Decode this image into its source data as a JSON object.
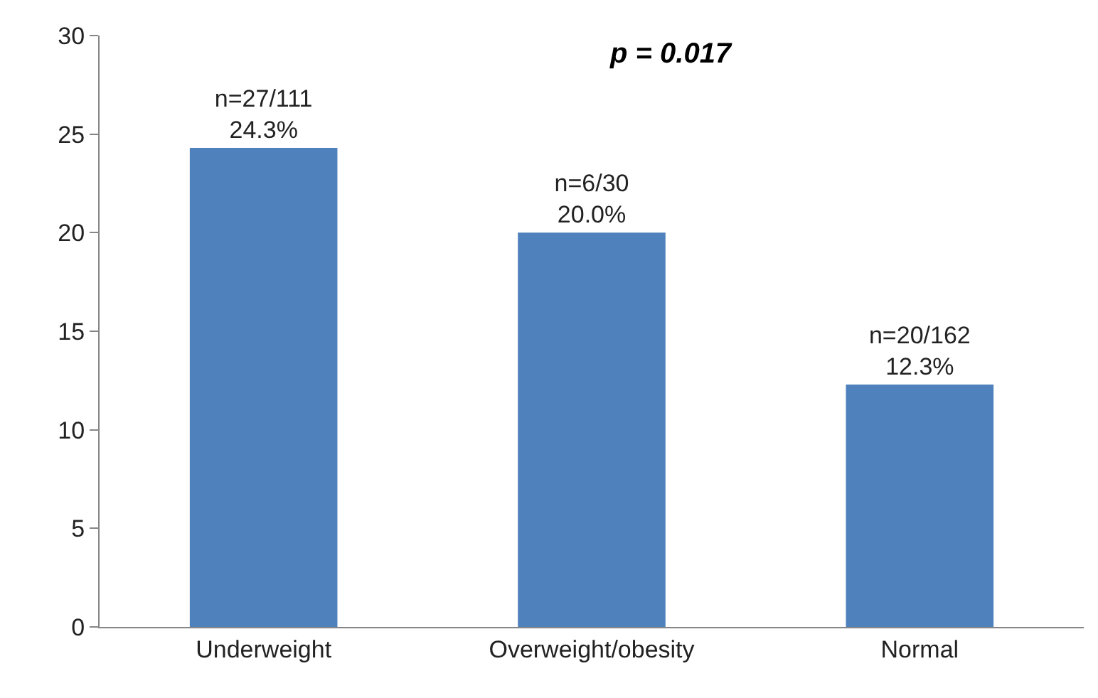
{
  "chart_data": {
    "type": "bar",
    "categories": [
      "Underweight",
      "Overweight/obesity",
      "Normal"
    ],
    "values": [
      24.3,
      20.0,
      12.3
    ],
    "value_labels": [
      "n=27/111\n24.3%",
      "n=6/30\n20.0%",
      "n=20/162\n12.3%"
    ],
    "color": "#4f81bd",
    "ylim": [
      0,
      30
    ],
    "yticks": [
      0,
      5,
      10,
      15,
      20,
      25,
      30
    ],
    "grid": false,
    "annotations": [
      "p = 0.017"
    ]
  }
}
